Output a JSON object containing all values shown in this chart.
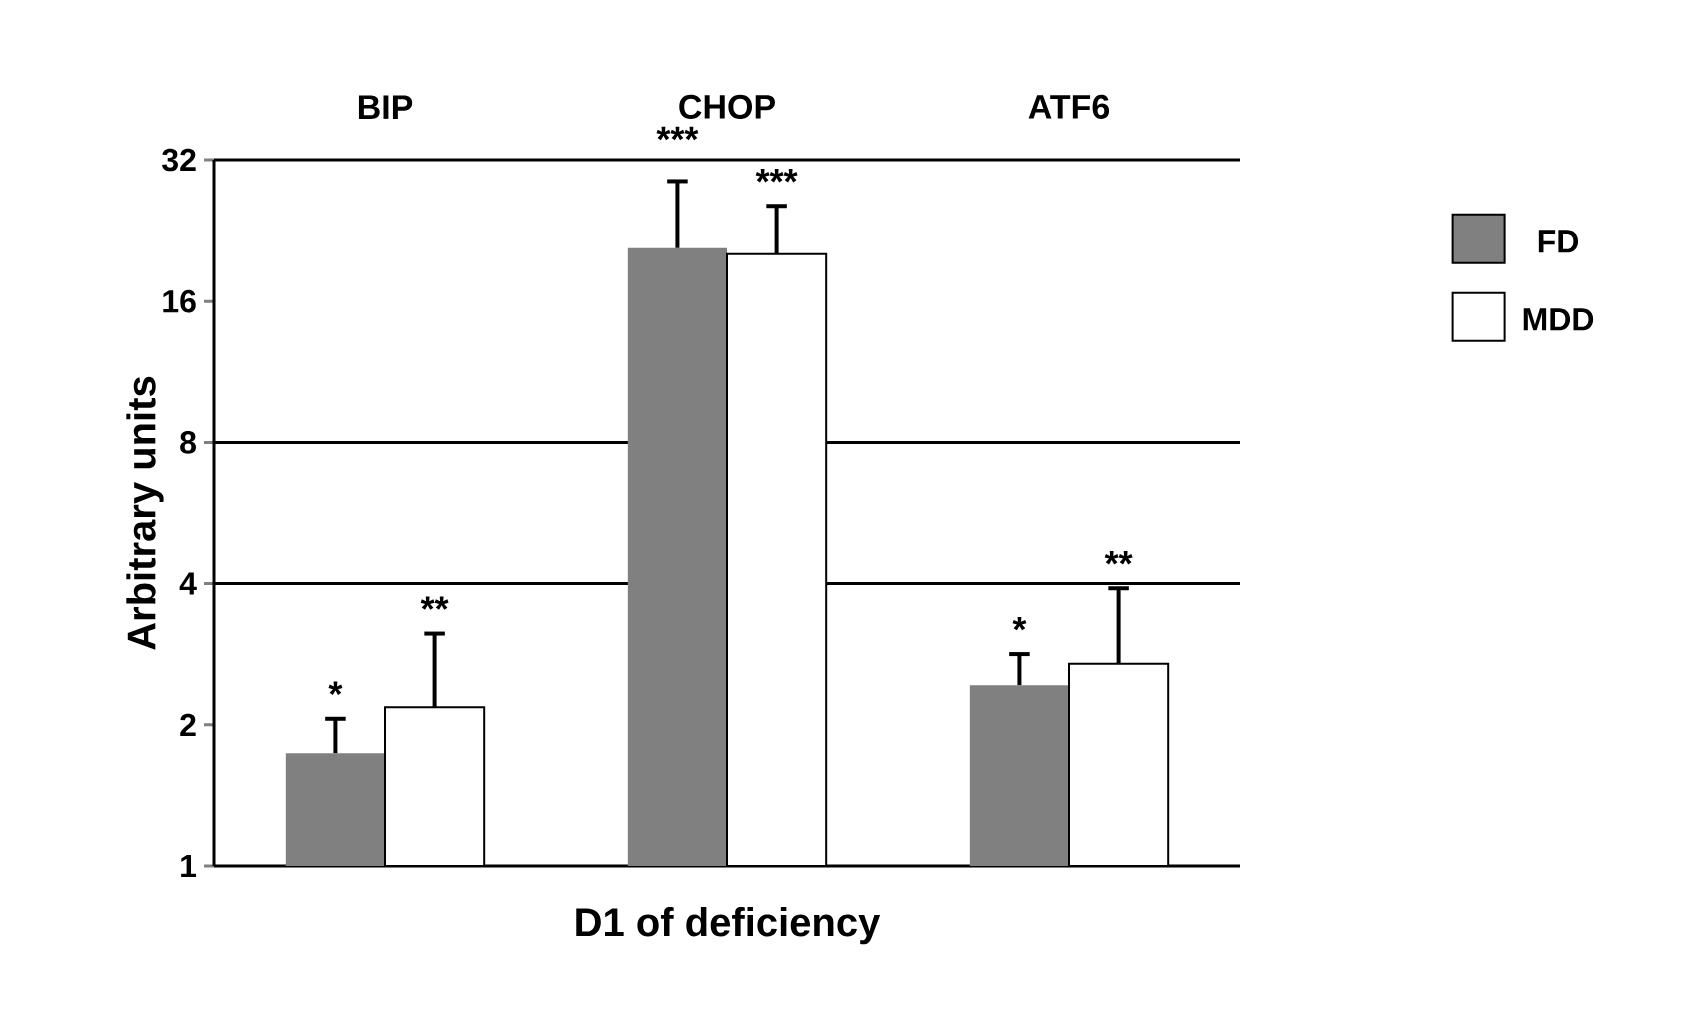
{
  "chart_data": {
    "type": "bar",
    "xlabel": "D1 of deficiency",
    "ylabel": "Arbitrary units",
    "categories": [
      "BIP",
      "CHOP",
      "ATF6"
    ],
    "series": [
      {
        "name": "FD",
        "color": "#808080",
        "values": [
          1.74,
          20.8,
          2.43
        ],
        "errors": [
          [
            1.74,
            2.06
          ],
          [
            20.8,
            28.8
          ],
          [
            2.43,
            2.83
          ]
        ]
      },
      {
        "name": "MDD",
        "color": "#ffffff",
        "values": [
          2.18,
          20.2,
          2.7
        ],
        "errors": [
          [
            2.18,
            3.13
          ],
          [
            20.2,
            25.5
          ],
          [
            2.7,
            3.91
          ]
        ]
      }
    ],
    "log": "y",
    "ylim": [
      1,
      32
    ],
    "yticks": [
      1,
      2,
      4,
      8,
      16,
      32
    ],
    "ref_lines": [
      {
        "axis": "y",
        "value": 4
      },
      {
        "axis": "y",
        "value": 8
      }
    ],
    "legend": "right",
    "annotations": [
      "*",
      "**",
      "***",
      "***",
      "*",
      "**"
    ]
  }
}
